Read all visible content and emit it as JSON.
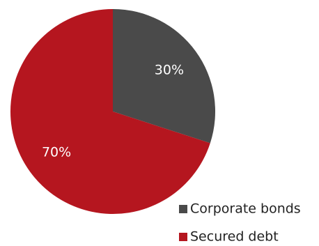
{
  "chart_data": {
    "type": "pie",
    "slices": [
      {
        "label": "Corporate bonds",
        "value": 30,
        "display": "30%",
        "color": "#4a4a4a"
      },
      {
        "label": "Secured debt",
        "value": 70,
        "display": "70%",
        "color": "#b5161f"
      }
    ],
    "start_angle_deg": 0,
    "direction": "clockwise",
    "legend": {
      "placement": "bottom-right",
      "items": [
        "Corporate bonds",
        "Secured debt"
      ]
    }
  }
}
